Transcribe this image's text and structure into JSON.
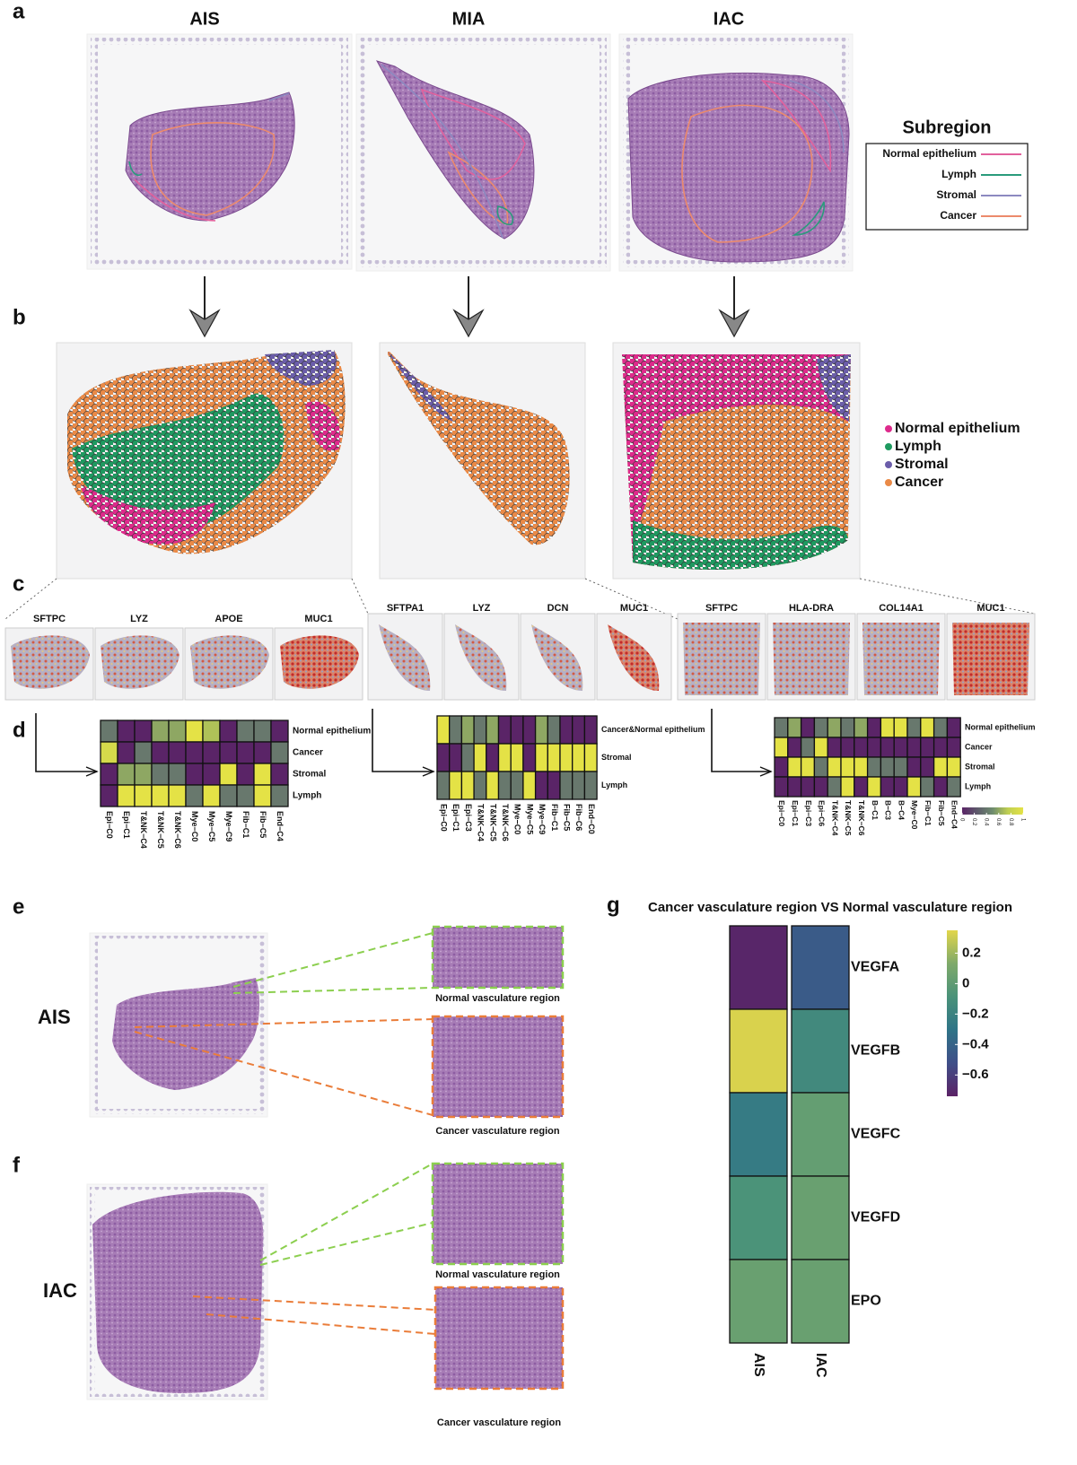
{
  "figure": {
    "panels": [
      "a",
      "b",
      "c",
      "d",
      "e",
      "f",
      "g"
    ],
    "a_titles": [
      "AIS",
      "MIA",
      "IAC"
    ],
    "subregion_title": "Subregion",
    "subregions": [
      {
        "name": "Normal epithelium",
        "color": "#e2619d"
      },
      {
        "name": "Lymph",
        "color": "#2a9b7c"
      },
      {
        "name": "Stromal",
        "color": "#8c89c0"
      },
      {
        "name": "Cancer",
        "color": "#ec8a6c"
      }
    ],
    "clusters": [
      {
        "name": "Normal epithelium",
        "color": "#de2a8c"
      },
      {
        "name": "Lymph",
        "color": "#1e9a60"
      },
      {
        "name": "Stromal",
        "color": "#6b5daa"
      },
      {
        "name": "Cancer",
        "color": "#ea8a47"
      }
    ],
    "genes": [
      [
        "SFTPC",
        "LYZ",
        "APOE",
        "MUC1"
      ],
      [
        "SFTPA1",
        "LYZ",
        "DCN",
        "MUC1"
      ],
      [
        "SFTPC",
        "HLA-DRA",
        "COL14A1",
        "MUC1"
      ]
    ],
    "e_label": "AIS",
    "f_label": "IAC",
    "normal_region": "Normal vasculature region",
    "cancer_region": "Cancer vasculature region"
  },
  "chart_data": [
    {
      "type": "heatmap",
      "x": [
        "Epi−C0",
        "Epi−C1",
        "T&NK−C4",
        "T&NK−C5",
        "T&NK−C6",
        "Mye−C0",
        "Mye−C5",
        "Mye−C9",
        "Fib−C1",
        "Fib−C5",
        "End−C4"
      ],
      "y": [
        "Normal epithelium",
        "Cancer",
        "Stromal",
        "Lymph"
      ],
      "values": [
        [
          0.4,
          0,
          0,
          0.6,
          0.6,
          1,
          0.7,
          0,
          0.4,
          0.4,
          0
        ],
        [
          0.9,
          0,
          0.4,
          0,
          0,
          0,
          0,
          0,
          0,
          0,
          0.4
        ],
        [
          0,
          0.6,
          0.6,
          0.4,
          0.4,
          0,
          0,
          1,
          0,
          1,
          0
        ],
        [
          0,
          1,
          1,
          1,
          1,
          0.4,
          1,
          0.4,
          0.4,
          1,
          0.4
        ]
      ],
      "zlim": [
        0,
        1
      ],
      "colormap": [
        "#5a2467",
        "#5e5b6c",
        "#6e8c6e",
        "#bfcf52",
        "#e4e246"
      ]
    },
    {
      "type": "heatmap",
      "x": [
        "Epi−C0",
        "Epi−C1",
        "Epi−C3",
        "T&NK−C4",
        "T&NK−C5",
        "T&NK−C6",
        "Mye−C0",
        "Mye−C5",
        "Mye−C9",
        "Fib−C1",
        "Fib−C5",
        "Fib−C6",
        "End−C0"
      ],
      "y": [
        "Cancer&Normal epithelium",
        "Stromal",
        "Lymph"
      ],
      "values": [
        [
          1,
          0.4,
          0.6,
          0.4,
          0.6,
          0,
          0,
          0,
          0.6,
          0.4,
          0,
          0,
          0
        ],
        [
          0,
          0,
          0.4,
          1,
          0,
          1,
          1,
          0,
          1,
          1,
          1,
          1,
          1
        ],
        [
          0.4,
          1,
          1,
          0.4,
          1,
          0.4,
          0.4,
          1,
          0,
          0,
          0.4,
          0.4,
          0.4
        ]
      ],
      "zlim": [
        0,
        1
      ],
      "colormap": [
        "#5a2467",
        "#5e5b6c",
        "#6e8c6e",
        "#bfcf52",
        "#e4e246"
      ]
    },
    {
      "type": "heatmap",
      "x": [
        "Epi−C0",
        "Epi−C1",
        "Epi−C3",
        "Epi−C6",
        "T&NK−C4",
        "T&NK−C5",
        "T&NK−C6",
        "B−C1",
        "B−C3",
        "B−C4",
        "Mye−C0",
        "Fib−C1",
        "Fib−C5",
        "End−C4"
      ],
      "y": [
        "Normal epithelium",
        "Cancer",
        "Stromal",
        "Lymph"
      ],
      "values": [
        [
          0.4,
          0.6,
          0,
          0.4,
          0.6,
          0.4,
          0.6,
          0,
          1,
          1,
          0.4,
          1,
          0.4,
          0
        ],
        [
          1,
          0,
          0.4,
          1,
          0,
          0,
          0,
          0,
          0,
          0,
          0,
          0,
          0,
          0
        ],
        [
          0,
          1,
          1,
          0.4,
          1,
          1,
          1,
          0.4,
          0.4,
          0.4,
          0,
          0,
          1,
          1
        ],
        [
          0,
          0,
          0,
          0,
          0.4,
          1,
          0,
          1,
          0,
          0,
          1,
          0.4,
          0,
          0.4
        ]
      ],
      "zlim": [
        0,
        1
      ],
      "zticks": [
        0,
        0.2,
        0.4,
        0.6,
        0.8,
        1
      ],
      "colormap": [
        "#5a2467",
        "#5e5b6c",
        "#6e8c6e",
        "#bfcf52",
        "#e4e246"
      ]
    },
    {
      "type": "heatmap",
      "title": "Cancer vasculature region VS Normal vasculature region",
      "x": [
        "AIS",
        "IAC"
      ],
      "y": [
        "VEGFA",
        "VEGFB",
        "VEGFC",
        "VEGFD",
        "EPO"
      ],
      "values": [
        [
          -0.72,
          -0.45
        ],
        [
          0.33,
          -0.15
        ],
        [
          -0.25,
          0.02
        ],
        [
          -0.08,
          0.04
        ],
        [
          0.04,
          0.04
        ]
      ],
      "zlim": [
        -0.74,
        0.35
      ],
      "zticks": [
        {
          "value": 0.2,
          "label": "0.2"
        },
        {
          "value": 0,
          "label": "0"
        },
        {
          "value": -0.2,
          "label": "−0.2"
        },
        {
          "value": -0.4,
          "label": "−0.4"
        },
        {
          "value": -0.6,
          "label": "−0.6"
        }
      ],
      "colormap": [
        "#5b2266",
        "#3f4f88",
        "#2f7487",
        "#4a9279",
        "#7faa6a",
        "#e2d64a"
      ]
    }
  ]
}
